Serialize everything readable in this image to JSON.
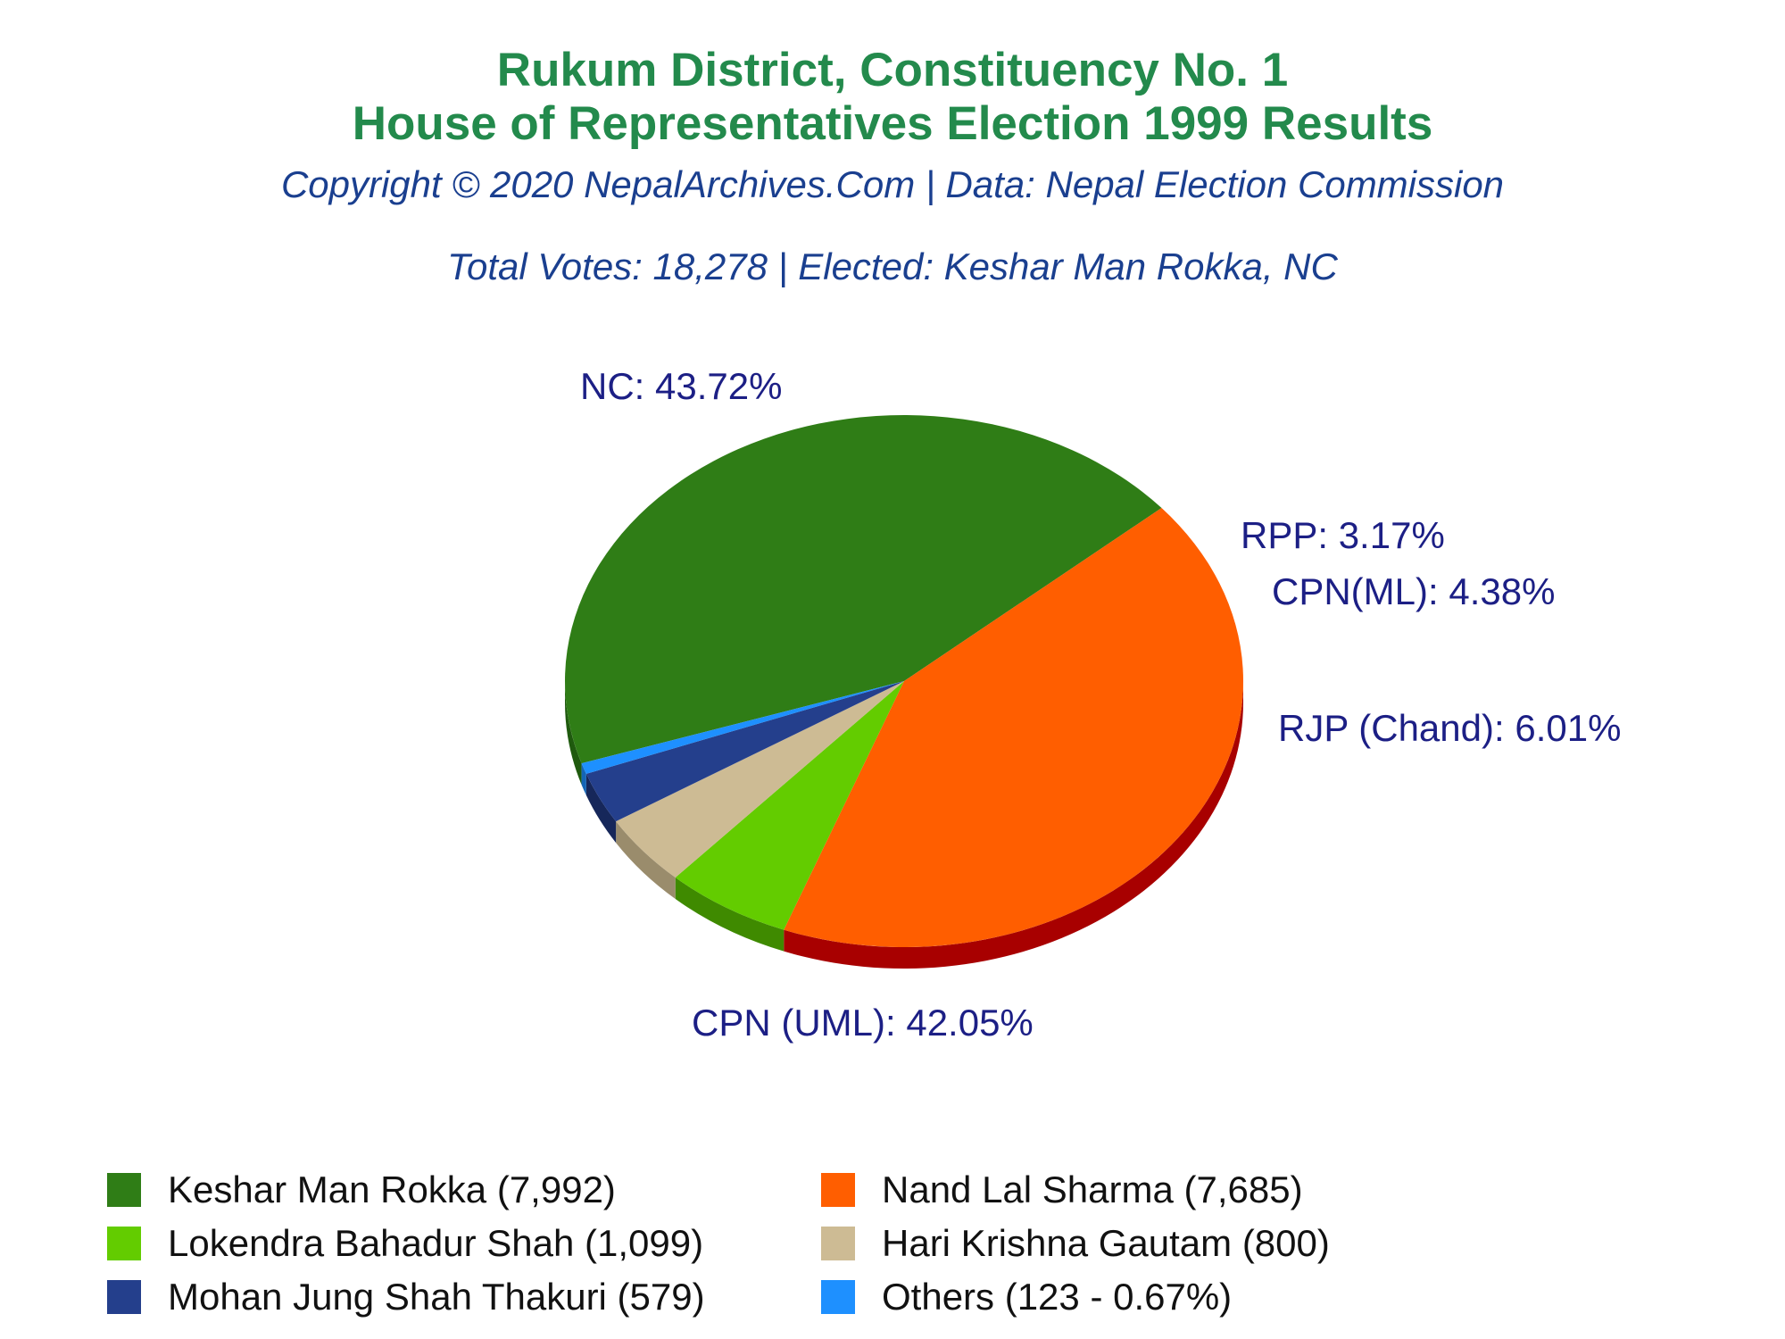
{
  "header": {
    "title_line1": "Rukum District, Constituency No. 1",
    "title_line2": "House of Representatives Election 1999 Results",
    "copyright": "Copyright © 2020 NepalArchives.Com | Data: Nepal Election Commission",
    "summary": "Total Votes: 18,278 | Elected: Keshar Man Rokka, NC"
  },
  "chart_data": {
    "type": "pie",
    "slices": [
      {
        "party": "NC",
        "label": "NC: 43.72%",
        "percent": 43.72,
        "color": "#2f7d16",
        "side_color": "#1f5a0e"
      },
      {
        "party": "CPN (UML)",
        "label": "CPN (UML): 42.05%",
        "percent": 42.05,
        "color": "#ff5e00",
        "side_color": "#a80000"
      },
      {
        "party": "RJP (Chand)",
        "label": "RJP (Chand): 6.01%",
        "percent": 6.01,
        "color": "#63cc00",
        "side_color": "#3f8a00"
      },
      {
        "party": "CPN(ML)",
        "label": "CPN(ML): 4.38%",
        "percent": 4.38,
        "color": "#cdbb94",
        "side_color": "#9a8c6c"
      },
      {
        "party": "RPP",
        "label": "RPP: 3.17%",
        "percent": 3.17,
        "color": "#243f8c",
        "side_color": "#16275a"
      },
      {
        "party": "Others",
        "label": "",
        "percent": 0.67,
        "color": "#1e90ff",
        "side_color": "#1465b5"
      }
    ],
    "legend": [
      {
        "text": "Keshar Man Rokka (7,992)",
        "color": "#2f7d16"
      },
      {
        "text": "Nand Lal Sharma (7,685)",
        "color": "#ff5e00"
      },
      {
        "text": "Lokendra Bahadur Shah (1,099)",
        "color": "#63cc00"
      },
      {
        "text": "Hari Krishna Gautam (800)",
        "color": "#cdbb94"
      },
      {
        "text": "Mohan Jung Shah Thakuri (579)",
        "color": "#243f8c"
      },
      {
        "text": "Others (123 - 0.67%)",
        "color": "#1e90ff"
      }
    ],
    "legend_placement": "bottom"
  }
}
